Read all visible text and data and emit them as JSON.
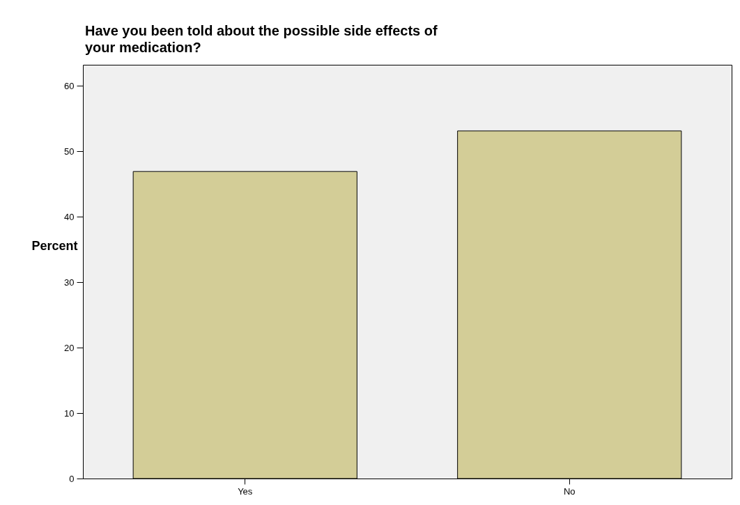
{
  "chart_data": {
    "type": "bar",
    "title": "Have you been told about the possible side effects of your medication?",
    "ylabel": "Percent",
    "categories": [
      "Yes",
      "No"
    ],
    "values": [
      46.9,
      53.1
    ],
    "color": "#d3cd97",
    "ylim": [
      0,
      63.2
    ],
    "yticks": [
      0,
      10,
      20,
      30,
      40,
      50,
      60
    ],
    "grid": false,
    "legend": false
  }
}
